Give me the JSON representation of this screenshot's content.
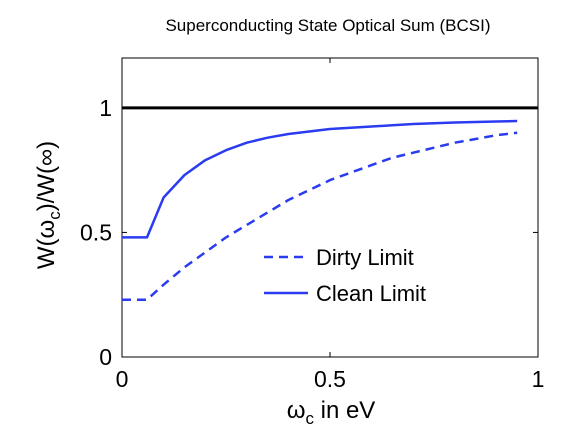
{
  "chart_data": {
    "type": "line",
    "title": "Superconducting State Optical Sum (BCSI)",
    "xlabel": {
      "main": "ω",
      "sub": "c",
      "rest": " in eV"
    },
    "ylabel": {
      "a": "W(ω",
      "sub": "c",
      "b": ")/W(∞)"
    },
    "xlim": [
      0,
      1
    ],
    "ylim": [
      0,
      1.2
    ],
    "xticks": [
      0,
      0.5,
      1
    ],
    "xtick_labels": [
      "0",
      "0.5",
      "1"
    ],
    "yticks": [
      0,
      0.5,
      1
    ],
    "ytick_labels": [
      "0",
      "0.5",
      "1"
    ],
    "grid": false,
    "legend_position": "center-right",
    "reference_line": {
      "y": 1,
      "color": "#000000"
    },
    "series": [
      {
        "name": "Dirty Limit",
        "style": "dashed",
        "color": "#2B3CF0",
        "x": [
          0.0,
          0.06,
          0.1,
          0.15,
          0.2,
          0.25,
          0.3,
          0.35,
          0.4,
          0.45,
          0.5,
          0.55,
          0.6,
          0.65,
          0.7,
          0.75,
          0.8,
          0.85,
          0.9,
          0.95
        ],
        "y": [
          0.23,
          0.23,
          0.29,
          0.36,
          0.42,
          0.48,
          0.53,
          0.58,
          0.63,
          0.67,
          0.71,
          0.74,
          0.77,
          0.8,
          0.82,
          0.84,
          0.86,
          0.875,
          0.89,
          0.9
        ]
      },
      {
        "name": "Clean Limit",
        "style": "solid",
        "color": "#2B3CF0",
        "x": [
          0.0,
          0.06,
          0.1,
          0.15,
          0.2,
          0.25,
          0.3,
          0.35,
          0.4,
          0.45,
          0.5,
          0.55,
          0.6,
          0.65,
          0.7,
          0.75,
          0.8,
          0.85,
          0.9,
          0.95
        ],
        "y": [
          0.48,
          0.48,
          0.64,
          0.73,
          0.79,
          0.83,
          0.86,
          0.88,
          0.895,
          0.905,
          0.915,
          0.92,
          0.925,
          0.93,
          0.935,
          0.938,
          0.941,
          0.943,
          0.945,
          0.947
        ]
      }
    ]
  }
}
